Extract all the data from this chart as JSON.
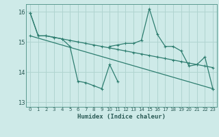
{
  "title": "",
  "xlabel": "Humidex (Indice chaleur)",
  "ylabel": "",
  "background_color": "#ceeae8",
  "line_color": "#2d7d6f",
  "grid_color": "#b0d4d0",
  "ylim": [
    12.85,
    16.25
  ],
  "xlim": [
    -0.5,
    23.5
  ],
  "yticks": [
    13,
    14,
    15,
    16
  ],
  "xticks": [
    0,
    1,
    2,
    3,
    4,
    5,
    6,
    7,
    8,
    9,
    10,
    11,
    12,
    13,
    14,
    15,
    16,
    17,
    18,
    19,
    20,
    21,
    22,
    23
  ],
  "series": [
    {
      "x": [
        0,
        1,
        2,
        3,
        4,
        5,
        6,
        7,
        8,
        9,
        10,
        11,
        12,
        13,
        14,
        15,
        16,
        17,
        18,
        19,
        20,
        21,
        22,
        23
      ],
      "y": [
        15.95,
        15.2,
        15.2,
        15.15,
        15.1,
        15.05,
        15.0,
        14.95,
        14.9,
        14.85,
        14.8,
        14.75,
        14.7,
        14.65,
        14.6,
        14.55,
        14.5,
        14.45,
        14.4,
        14.35,
        14.3,
        14.25,
        14.2,
        14.15
      ]
    },
    {
      "x": [
        0,
        1,
        2,
        3,
        4,
        5,
        6,
        7,
        8,
        9,
        10,
        11,
        12,
        13,
        14,
        15,
        16,
        17,
        18,
        19,
        20,
        21,
        22,
        23
      ],
      "y": [
        15.95,
        15.2,
        15.2,
        15.15,
        15.1,
        14.85,
        13.7,
        13.65,
        13.55,
        13.45,
        14.25,
        13.7,
        null,
        null,
        null,
        null,
        null,
        null,
        null,
        null,
        null,
        null,
        null,
        null
      ]
    },
    {
      "x": [
        10,
        11,
        12,
        13,
        14,
        15,
        16,
        17,
        18,
        19,
        20,
        21,
        22,
        23
      ],
      "y": [
        14.85,
        14.9,
        14.95,
        14.95,
        15.05,
        16.1,
        15.25,
        14.85,
        14.85,
        14.7,
        14.2,
        14.25,
        14.5,
        13.45
      ]
    },
    {
      "x": [
        0,
        23
      ],
      "y": [
        15.2,
        13.45
      ]
    }
  ]
}
